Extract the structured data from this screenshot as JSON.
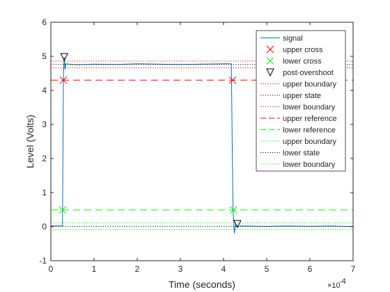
{
  "chart_data": {
    "type": "line",
    "xlabel": "Time (seconds)",
    "ylabel": "Level (Volts)",
    "x_exponent_base": "×10",
    "x_exponent_power": "-4",
    "x_scale_factor": 0.0001,
    "xlim": [
      0,
      7
    ],
    "ylim": [
      -1,
      6
    ],
    "xticks": [
      0,
      1,
      2,
      3,
      4,
      5,
      6,
      7
    ],
    "yticks": [
      -1,
      0,
      1,
      2,
      3,
      4,
      5,
      6
    ],
    "grid": false,
    "legend_position": "top-right",
    "series": [
      {
        "name": "signal",
        "style": "solid",
        "color": "#0072bd",
        "x": [
          0,
          0.27,
          0.29,
          0.31,
          0.33,
          0.35,
          0.6,
          1.0,
          1.5,
          2.0,
          2.5,
          3.0,
          3.5,
          4.0,
          4.18,
          4.2,
          4.22,
          4.25,
          4.28,
          4.32,
          4.4,
          5.0,
          5.5,
          6.0,
          6.5,
          7.0
        ],
        "y": [
          0.02,
          0.02,
          4.3,
          4.98,
          4.62,
          4.78,
          4.75,
          4.77,
          4.76,
          4.78,
          4.77,
          4.76,
          4.77,
          4.78,
          4.78,
          2.5,
          0.49,
          -0.2,
          0.08,
          0.0,
          0.02,
          0.01,
          0.02,
          0.01,
          0.02,
          0.0
        ]
      },
      {
        "name": "upper cross",
        "style": "marker-x",
        "color": "#ff0000",
        "x": [
          0.29,
          4.21
        ],
        "y": [
          4.3,
          4.3
        ]
      },
      {
        "name": "lower cross",
        "style": "marker-x",
        "color": "#00ff00",
        "x": [
          0.27,
          4.23
        ],
        "y": [
          0.49,
          0.49
        ]
      },
      {
        "name": "post-overshoot",
        "style": "marker-triangle-down",
        "color": "#000000",
        "x": [
          0.31,
          4.32
        ],
        "y": [
          4.98,
          0.08
        ]
      },
      {
        "name": "upper boundary",
        "style": "dotted",
        "color": "#ff0000",
        "y_const": 4.86,
        "x_range": [
          0,
          7
        ]
      },
      {
        "name": "upper state",
        "style": "dotted",
        "color": "#000000",
        "y_const": 4.76,
        "x_range": [
          0,
          7
        ]
      },
      {
        "name": "lower boundary",
        "style": "dotted",
        "color": "#ff0000",
        "y_const": 4.66,
        "x_range": [
          0,
          7
        ]
      },
      {
        "name": "upper reference",
        "style": "dashed",
        "color": "#ff0000",
        "y_const": 4.3,
        "x_range": [
          0,
          7
        ]
      },
      {
        "name": "lower reference",
        "style": "dashed",
        "color": "#00ff00",
        "y_const": 0.49,
        "x_range": [
          0,
          7
        ]
      },
      {
        "name": "upper boundary",
        "style": "dotted",
        "color": "#00ff00",
        "y_const": 0.11,
        "x_range": [
          0,
          7
        ]
      },
      {
        "name": "lower state",
        "style": "dotted",
        "color": "#000000",
        "y_const": 0.01,
        "x_range": [
          0,
          7
        ]
      },
      {
        "name": "lower boundary",
        "style": "dotted",
        "color": "#00ff00",
        "y_const": -0.09,
        "x_range": [
          0,
          7
        ]
      }
    ]
  }
}
